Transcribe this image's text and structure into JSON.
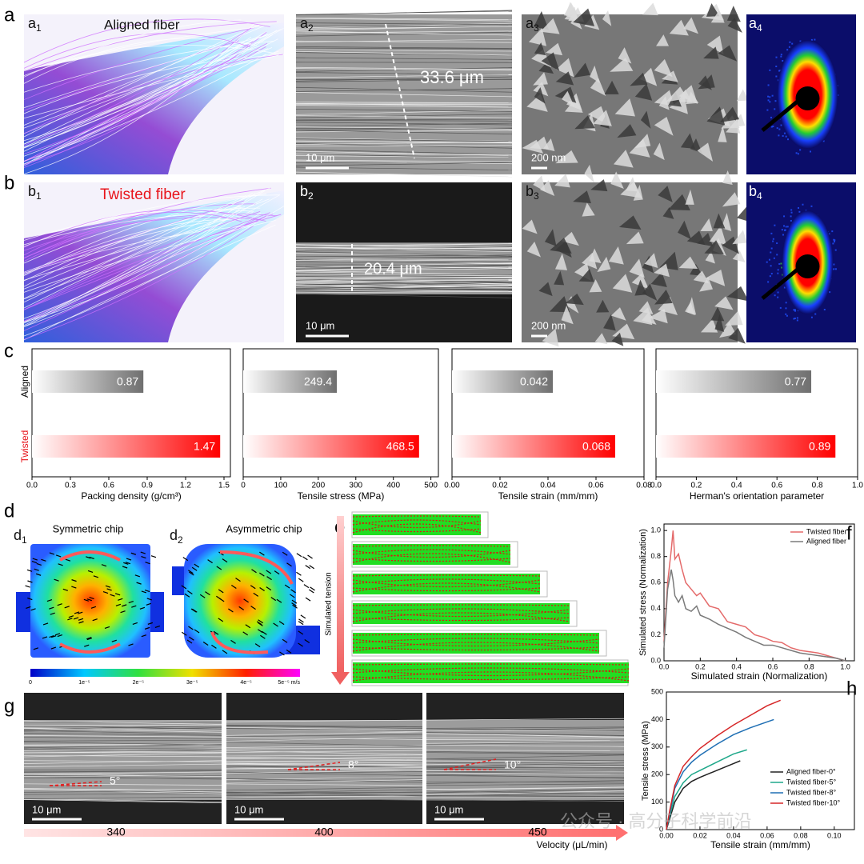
{
  "panel_letters": {
    "a": "a",
    "b": "b",
    "c": "c",
    "d": "d",
    "e": "e",
    "f": "f",
    "g": "g",
    "h": "h"
  },
  "images": [
    {
      "label": "a",
      "sub": "1",
      "title": "Aligned fiber"
    },
    {
      "label": "a",
      "sub": "2",
      "measurement": "33.6 μm",
      "scale_bar": "10 μm"
    },
    {
      "label": "a",
      "sub": "3",
      "scale_bar": "200 nm"
    },
    {
      "label": "a",
      "sub": "4"
    },
    {
      "label": "b",
      "sub": "1",
      "title": "Twisted fiber"
    },
    {
      "label": "b",
      "sub": "2",
      "measurement": "20.4 μm",
      "scale_bar": "10 μm"
    },
    {
      "label": "b",
      "sub": "3",
      "scale_bar": "200 nm"
    },
    {
      "label": "b",
      "sub": "4"
    }
  ],
  "simulation": {
    "d1": {
      "label": "d",
      "sub": "1",
      "title": "Symmetric chip"
    },
    "d2": {
      "label": "d",
      "sub": "2",
      "title": "Asymmetric chip"
    },
    "colorbar_ticks": [
      "0",
      "1e⁻⁵",
      "2e⁻⁵",
      "3e⁻⁵",
      "4e⁻⁵",
      "5e⁻⁵ m/s"
    ],
    "tension_label": "Simulated tension"
  },
  "velocity": {
    "values": [
      340,
      400,
      450
    ],
    "angles": [
      "5°",
      "8°",
      "10°"
    ],
    "scale_bar": "10 μm",
    "axis_label": "Velocity (μL/min)"
  },
  "watermark": "公众号 · 高分子科学前沿",
  "chart_data": [
    {
      "type": "bar",
      "orientation": "horizontal",
      "categories": [
        "Aligned",
        "Twisted"
      ],
      "category_colors": [
        "#000000",
        "#e8141b"
      ],
      "bar_colors": [
        "#6f6f6f",
        "#ff0000"
      ],
      "panels": [
        {
          "xlabel": "Packing density (g/cm³)",
          "values": [
            0.87,
            1.47
          ],
          "xlim": [
            0,
            1.55
          ],
          "xticks": [
            {
              "value": 0,
              "label": "0.0"
            },
            0.3,
            0.6,
            0.9,
            1.2,
            1.5
          ]
        },
        {
          "xlabel": "Tensile stress (MPa)",
          "values": [
            249.4,
            468.5
          ],
          "xlim": [
            0,
            520
          ],
          "xticks": [
            0,
            100,
            200,
            300,
            400,
            500
          ]
        },
        {
          "xlabel": "Tensile strain (mm/mm)",
          "values": [
            0.042,
            0.068
          ],
          "xlim": [
            0,
            0.08
          ],
          "xticks": [
            {
              "value": 0,
              "label": "0.00"
            },
            0.02,
            0.04,
            0.06,
            0.08
          ]
        },
        {
          "xlabel": "Herman's orientation parameter",
          "values": [
            0.77,
            0.89
          ],
          "xlim": [
            0,
            1.0
          ],
          "xticks": [
            {
              "value": 0,
              "label": "0.0"
            },
            0.2,
            0.4,
            0.6,
            0.8,
            {
              "value": 1,
              "label": "1.0"
            }
          ]
        }
      ]
    },
    {
      "type": "line",
      "xlabel": "Simulated strain (Normalization)",
      "ylabel": "Simulated stress (Normalization)",
      "legend": "upper right",
      "x": [
        0,
        0.02,
        0.04,
        0.05,
        0.06,
        0.08,
        0.1,
        0.12,
        0.15,
        0.18,
        0.2,
        0.25,
        0.3,
        0.35,
        0.4,
        0.45,
        0.5,
        0.55,
        0.6,
        0.65,
        0.7,
        0.75,
        0.8,
        0.85,
        0.9,
        0.95,
        1.0
      ],
      "xlim": [
        0,
        1.05
      ],
      "ylim": [
        0,
        1.05
      ],
      "xticks": [
        {
          "value": 0,
          "label": "0.0"
        },
        0.2,
        0.4,
        0.6,
        0.8,
        {
          "value": 1,
          "label": "1.0"
        }
      ],
      "yticks": [
        {
          "value": 0,
          "label": "0.0"
        },
        0.2,
        0.4,
        0.6,
        0.8,
        {
          "value": 1,
          "label": "1.0"
        }
      ],
      "series": [
        {
          "name": "Twisted fiber",
          "color": "#e46a6a",
          "values": [
            0.15,
            0.6,
            0.85,
            1.0,
            0.78,
            0.82,
            0.7,
            0.6,
            0.55,
            0.5,
            0.52,
            0.42,
            0.4,
            0.3,
            0.28,
            0.26,
            0.2,
            0.18,
            0.15,
            0.14,
            0.1,
            0.08,
            0.07,
            0.06,
            0.04,
            0.02,
            0.0
          ]
        },
        {
          "name": "Aligned fiber",
          "color": "#7a7a7a",
          "values": [
            0.1,
            0.55,
            0.7,
            0.62,
            0.5,
            0.45,
            0.5,
            0.4,
            0.38,
            0.42,
            0.35,
            0.32,
            0.28,
            0.25,
            0.22,
            0.18,
            0.15,
            0.12,
            0.12,
            0.1,
            0.08,
            0.06,
            0.05,
            0.04,
            0.03,
            0.02,
            0.0
          ]
        }
      ]
    },
    {
      "type": "line",
      "xlabel": "Tensile strain (mm/mm)",
      "ylabel": "Tensile stress (MPa)",
      "legend": "lower right",
      "xlim": [
        0,
        0.112
      ],
      "ylim": [
        0,
        500
      ],
      "xticks": [
        {
          "value": 0,
          "label": "0.00"
        },
        0.02,
        0.04,
        0.06,
        0.08,
        {
          "value": 0.1,
          "label": "0.10"
        }
      ],
      "yticks": [
        0,
        100,
        200,
        300,
        400,
        500
      ],
      "series": [
        {
          "name": "Aligned fiber-0°",
          "color": "#222222",
          "x": [
            0,
            0.002,
            0.005,
            0.01,
            0.015,
            0.02,
            0.03,
            0.04,
            0.044
          ],
          "values": [
            0,
            40,
            100,
            150,
            175,
            190,
            215,
            240,
            250
          ]
        },
        {
          "name": "Twisted fiber-5°",
          "color": "#1fa88a",
          "x": [
            0,
            0.002,
            0.005,
            0.01,
            0.015,
            0.02,
            0.03,
            0.04,
            0.048
          ],
          "values": [
            0,
            50,
            120,
            170,
            200,
            215,
            245,
            275,
            290
          ]
        },
        {
          "name": "Twisted fiber-8°",
          "color": "#1f6fb4",
          "x": [
            0,
            0.002,
            0.005,
            0.01,
            0.015,
            0.02,
            0.03,
            0.04,
            0.05,
            0.064
          ],
          "values": [
            0,
            60,
            150,
            210,
            245,
            270,
            310,
            345,
            370,
            400
          ]
        },
        {
          "name": "Twisted fiber-10°",
          "color": "#d62728",
          "x": [
            0,
            0.002,
            0.005,
            0.01,
            0.015,
            0.02,
            0.03,
            0.04,
            0.05,
            0.06,
            0.068
          ],
          "values": [
            0,
            70,
            160,
            230,
            265,
            295,
            340,
            380,
            415,
            450,
            470
          ]
        }
      ]
    }
  ]
}
